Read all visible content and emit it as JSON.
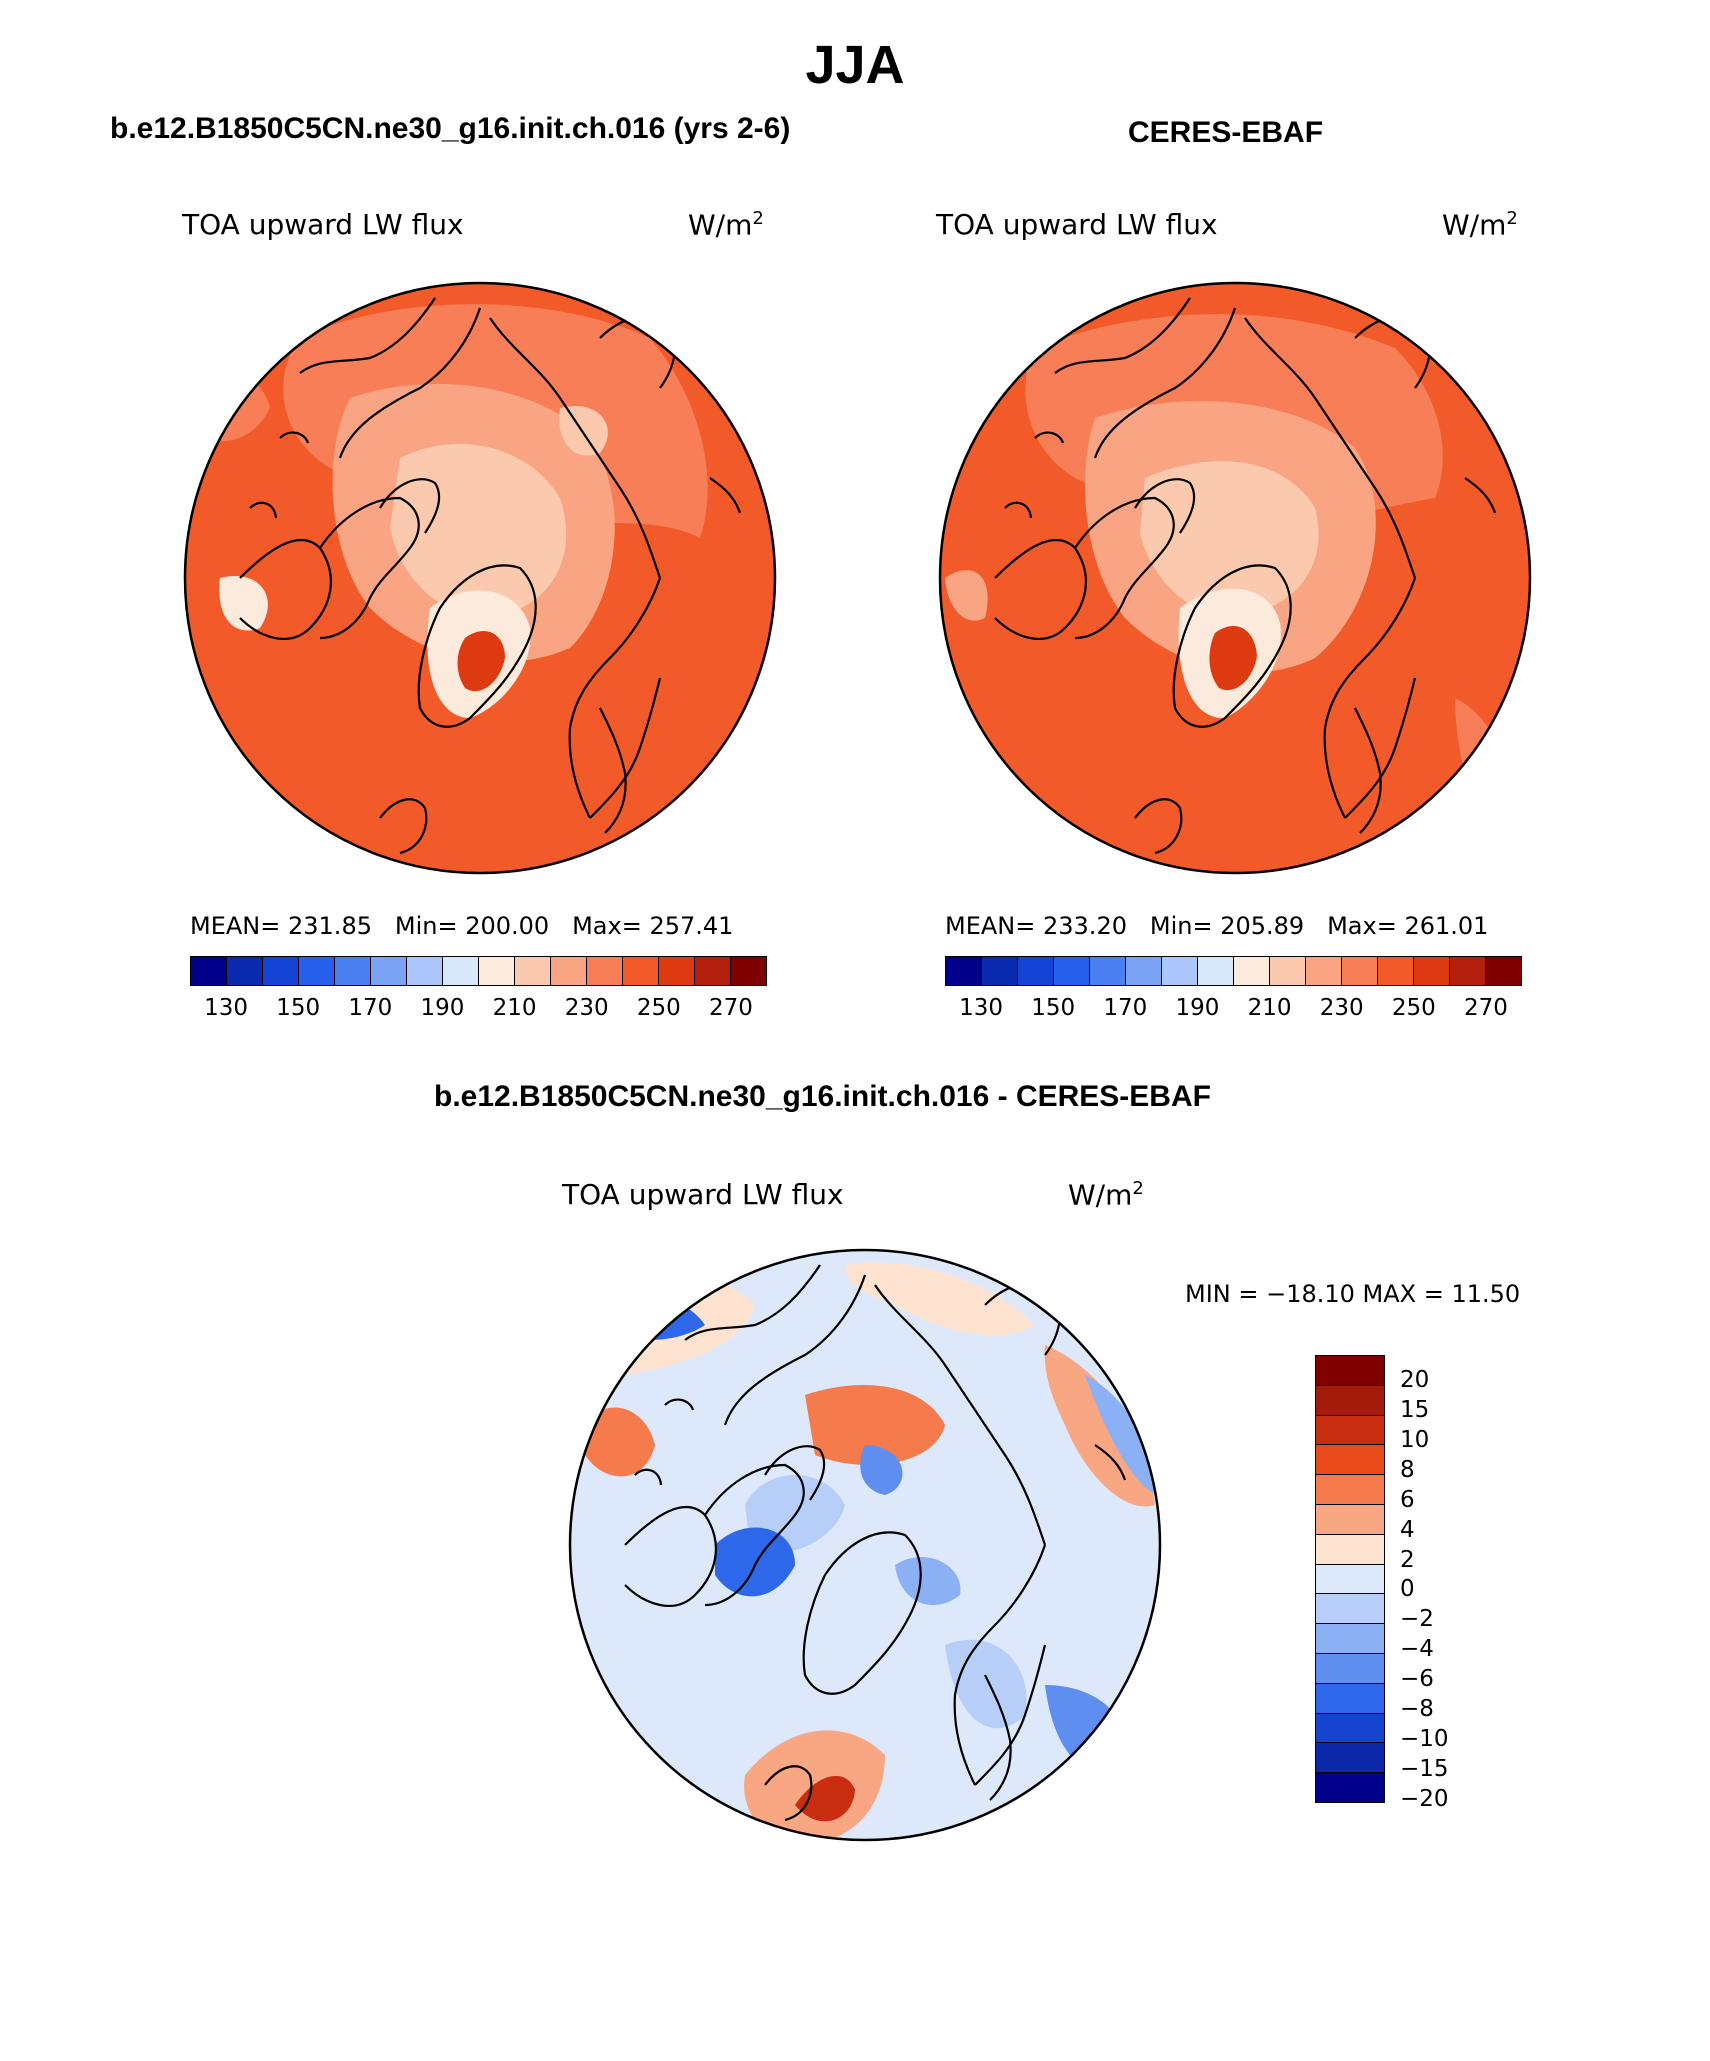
{
  "figure": {
    "season": "JJA",
    "model_title": "b.e12.B1850C5CN.ne30_g16.init.ch.016 (yrs 2-6)",
    "obs_title": "CERES-EBAF",
    "diff_title": "b.e12.B1850C5CN.ne30_g16.init.ch.016 - CERES-EBAF"
  },
  "panels": {
    "model": {
      "variable": "TOA upward LW flux",
      "units": "W/m",
      "units_exp": "2",
      "stats": {
        "mean_label": "MEAN=",
        "mean": "231.85",
        "min_label": "Min=",
        "min": "200.00",
        "max_label": "Max=",
        "max": "257.41"
      }
    },
    "obs": {
      "variable": "TOA upward LW flux",
      "units": "W/m",
      "units_exp": "2",
      "stats": {
        "mean_label": "MEAN=",
        "mean": "233.20",
        "min_label": "Min=",
        "min": "205.89",
        "max_label": "Max=",
        "max": "261.01"
      }
    },
    "diff": {
      "variable": "TOA upward LW flux",
      "units": "W/m",
      "units_exp": "2",
      "minmax": "MIN = −18.10 MAX =   11.50"
    }
  },
  "colorbars": {
    "abs_colors": [
      "#00008a",
      "#0a2bb0",
      "#1543d6",
      "#2660ec",
      "#4a80f2",
      "#7aa2f5",
      "#aac6fa",
      "#d7e8fb",
      "#fcebdc",
      "#fbc9ad",
      "#f9a583",
      "#f77e56",
      "#f25a2a",
      "#dd3a12",
      "#b41f0e",
      "#800000"
    ],
    "abs_ticks": [
      "130",
      "150",
      "170",
      "190",
      "210",
      "230",
      "250",
      "270"
    ],
    "diff_colors": [
      "#800000",
      "#a31b0b",
      "#c92d10",
      "#e84a1a",
      "#f57b4c",
      "#f9a682",
      "#fde3d0",
      "#dde9fb",
      "#b6cef8",
      "#8cb0f4",
      "#5e8ef0",
      "#2d68ea",
      "#1444d0",
      "#0b28aa",
      "#00008a"
    ],
    "diff_ticks": [
      "20",
      "15",
      "10",
      "8",
      "6",
      "4",
      "2",
      "0",
      "−2",
      "−4",
      "−6",
      "−8",
      "−10",
      "−15",
      "−20"
    ]
  },
  "map_colors": {
    "model_bg": "#f25a2a",
    "model_shades": [
      "#f77e56",
      "#f9a583",
      "#fbc9ad",
      "#fcebdc",
      "#dd3a12"
    ],
    "obs_bg": "#f25a2a",
    "obs_shades": [
      "#f77e56",
      "#f9a583",
      "#fbc9ad",
      "#fcebdc",
      "#dd3a12"
    ],
    "diff_bg": "#dde9fb",
    "diff_shades": [
      "#fde3d0",
      "#f9a682",
      "#f57b4c",
      "#b6cef8",
      "#8cb0f4",
      "#5e8ef0",
      "#2d68ea",
      "#c92d10"
    ],
    "coast": "#000000"
  }
}
